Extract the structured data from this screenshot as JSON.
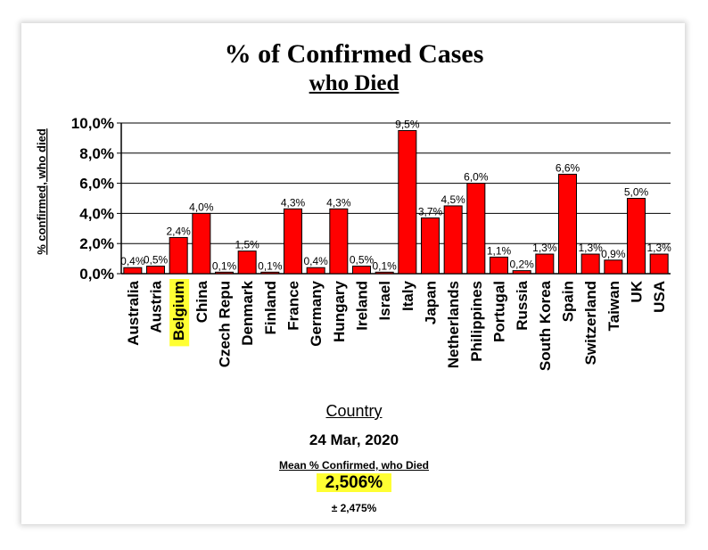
{
  "title": "% of Confirmed Cases",
  "subtitle": "who Died",
  "footer": {
    "date": "24 Mar, 2020",
    "mean_label": "Mean % Confirmed, who Died",
    "mean_value": "2,506%",
    "std_value": "± 2,475%"
  },
  "colors": {
    "bar": "#ff0000",
    "highlight": "#ffff33"
  },
  "chart_data": {
    "type": "bar",
    "title": "% of Confirmed Cases who Died",
    "xlabel": "Country",
    "ylabel": "% confirmed, who died",
    "ylim": [
      0,
      10
    ],
    "yticks": [
      "0,0%",
      "2,0%",
      "4,0%",
      "6,0%",
      "8,0%",
      "10,0%"
    ],
    "grid": true,
    "highlighted_category": "Belgium",
    "categories": [
      "Australia",
      "Austria",
      "Belgium",
      "China",
      "Czech Repu",
      "Denmark",
      "Finland",
      "France",
      "Germany",
      "Hungary",
      "Ireland",
      "Israel",
      "Italy",
      "Japan",
      "Netherlands",
      "Philippines",
      "Portugal",
      "Russia",
      "South Korea",
      "Spain",
      "Switzerland",
      "Taiwan",
      "UK",
      "USA"
    ],
    "values": [
      0.4,
      0.5,
      2.4,
      4.0,
      0.1,
      1.5,
      0.1,
      4.3,
      0.4,
      4.3,
      0.5,
      0.1,
      9.5,
      3.7,
      4.5,
      6.0,
      1.1,
      0.2,
      1.3,
      6.6,
      1.3,
      0.9,
      5.0,
      1.3
    ],
    "labels": [
      "0,4%",
      "0,5%",
      "2,4%",
      "4,0%",
      "0,1%",
      "1,5%",
      "0,1%",
      "4,3%",
      "0,4%",
      "4,3%",
      "0,5%",
      "0,1%",
      "9,5%",
      "3,7%",
      "4,5%",
      "6,0%",
      "1,1%",
      "0,2%",
      "1,3%",
      "6,6%",
      "1,3%",
      "0,9%",
      "5,0%",
      "1,3%"
    ]
  }
}
